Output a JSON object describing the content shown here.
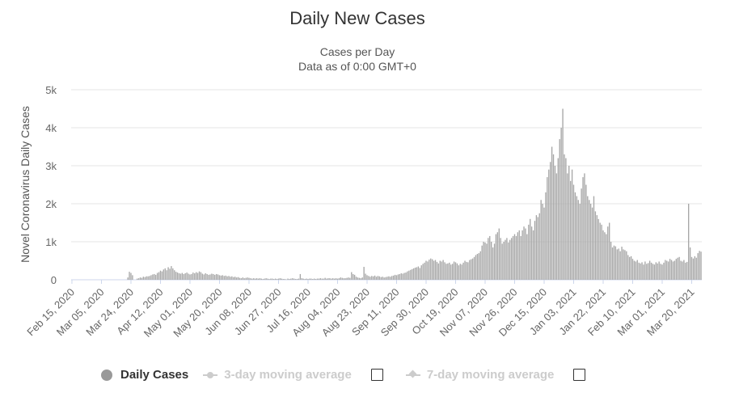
{
  "title": "Daily New Cases",
  "subtitle_1": "Cases per Day",
  "subtitle_2": "Data as of 0:00 GMT+0",
  "legend": {
    "daily_cases": "Daily Cases",
    "ma3": "3-day moving average",
    "ma7": "7-day moving average"
  },
  "colors": {
    "bar": "#a6a6a6",
    "grid": "#e6e6e6",
    "axis_text": "#666666",
    "inactive": "#cccccc"
  },
  "chart_data": {
    "type": "bar",
    "title": "Daily New Cases",
    "subtitle": "Cases per Day · Data as of 0:00 GMT+0",
    "ylabel": "Novel Coronavirus Daily Cases",
    "xlabel": "",
    "ylim": [
      0,
      5000
    ],
    "y_ticks": [
      {
        "value": 0,
        "label": "0"
      },
      {
        "value": 1000,
        "label": "1k"
      },
      {
        "value": 2000,
        "label": "2k"
      },
      {
        "value": 3000,
        "label": "3k"
      },
      {
        "value": 4000,
        "label": "4k"
      },
      {
        "value": 5000,
        "label": "5k"
      }
    ],
    "start_date": "2020-02-15",
    "end_date": "2021-03-26",
    "x_tick_labels": [
      "Feb 15, 2020",
      "Mar 05, 2020",
      "Mar 24, 2020",
      "Apr 12, 2020",
      "May 01, 2020",
      "May 20, 2020",
      "Jun 08, 2020",
      "Jun 27, 2020",
      "Jul 16, 2020",
      "Aug 04, 2020",
      "Aug 23, 2020",
      "Sep 11, 2020",
      "Sep 30, 2020",
      "Oct 19, 2020",
      "Nov 07, 2020",
      "Nov 26, 2020",
      "Dec 15, 2020",
      "Jan 03, 2021",
      "Jan 22, 2021",
      "Feb 10, 2021",
      "Mar 01, 2021",
      "Mar 20, 2021"
    ],
    "series": [
      {
        "name": "Daily Cases",
        "values": [
          0,
          0,
          0,
          0,
          0,
          0,
          0,
          0,
          0,
          0,
          0,
          0,
          0,
          0,
          0,
          0,
          0,
          0,
          0,
          0,
          0,
          0,
          0,
          0,
          0,
          0,
          0,
          0,
          0,
          0,
          0,
          0,
          0,
          0,
          0,
          0,
          60,
          210,
          180,
          120,
          0,
          0,
          30,
          40,
          60,
          50,
          80,
          70,
          90,
          90,
          100,
          120,
          140,
          150,
          130,
          180,
          200,
          240,
          220,
          270,
          300,
          250,
          330,
          290,
          360,
          300,
          250,
          210,
          190,
          170,
          160,
          180,
          150,
          170,
          190,
          160,
          140,
          150,
          190,
          170,
          200,
          180,
          220,
          200,
          160,
          140,
          170,
          150,
          130,
          140,
          160,
          150,
          130,
          150,
          140,
          120,
          110,
          120,
          100,
          110,
          90,
          100,
          80,
          90,
          70,
          80,
          60,
          70,
          50,
          40,
          60,
          40,
          50,
          60,
          50,
          40,
          30,
          40,
          30,
          40,
          30,
          40,
          30,
          20,
          30,
          40,
          30,
          20,
          30,
          30,
          20,
          30,
          20,
          30,
          40,
          30,
          20,
          20,
          10,
          30,
          20,
          30,
          40,
          30,
          20,
          20,
          30,
          150,
          40,
          30,
          20,
          30,
          20,
          30,
          30,
          20,
          30,
          20,
          30,
          30,
          40,
          30,
          30,
          50,
          30,
          40,
          40,
          30,
          40,
          30,
          40,
          30,
          40,
          60,
          50,
          40,
          40,
          50,
          60,
          50,
          200,
          150,
          130,
          80,
          60,
          50,
          40,
          60,
          340,
          160,
          120,
          100,
          80,
          100,
          90,
          110,
          80,
          100,
          90,
          70,
          80,
          60,
          70,
          80,
          90,
          80,
          100,
          110,
          130,
          120,
          140,
          150,
          170,
          160,
          180,
          190,
          220,
          240,
          260,
          280,
          300,
          320,
          330,
          350,
          310,
          380,
          420,
          450,
          500,
          480,
          530,
          560,
          540,
          500,
          520,
          470,
          430,
          500,
          480,
          520,
          460,
          420,
          430,
          450,
          400,
          420,
          480,
          460,
          430,
          380,
          420,
          400,
          450,
          500,
          470,
          460,
          520,
          540,
          560,
          600,
          650,
          680,
          700,
          750,
          900,
          1000,
          980,
          950,
          1100,
          1150,
          1000,
          850,
          950,
          1200,
          1250,
          1350,
          1100,
          950,
          1000,
          1050,
          1100,
          980,
          1050,
          1100,
          1150,
          1200,
          1150,
          1250,
          1300,
          1150,
          1300,
          1400,
          1350,
          1200,
          1450,
          1600,
          1400,
          1300,
          1550,
          1700,
          1650,
          1750,
          2100,
          2000,
          1900,
          2300,
          2700,
          2900,
          3100,
          3500,
          3300,
          3000,
          2800,
          3200,
          3700,
          4000,
          4500,
          3300,
          3200,
          2800,
          3000,
          2600,
          2900,
          2500,
          2300,
          2200,
          2100,
          2000,
          2400,
          2700,
          2800,
          2500,
          2200,
          2100,
          2000,
          1900,
          2200,
          1800,
          1700,
          1600,
          1500,
          1450,
          1300,
          1250,
          1200,
          1400,
          1500,
          1000,
          850,
          900,
          880,
          800,
          820,
          750,
          870,
          800,
          780,
          750,
          650,
          600,
          620,
          550,
          500,
          480,
          520,
          450,
          430,
          460,
          400,
          480,
          420,
          440,
          500,
          450,
          420,
          400,
          460,
          430,
          480,
          420,
          400,
          450,
          520,
          500,
          480,
          550,
          520,
          480,
          500,
          550,
          580,
          600,
          500,
          480,
          520,
          450,
          470,
          2000,
          850,
          600,
          560,
          620,
          580,
          700,
          760,
          740,
          800,
          690,
          650,
          700,
          750
        ]
      }
    ],
    "grid": true,
    "legend_position": "bottom-center"
  }
}
